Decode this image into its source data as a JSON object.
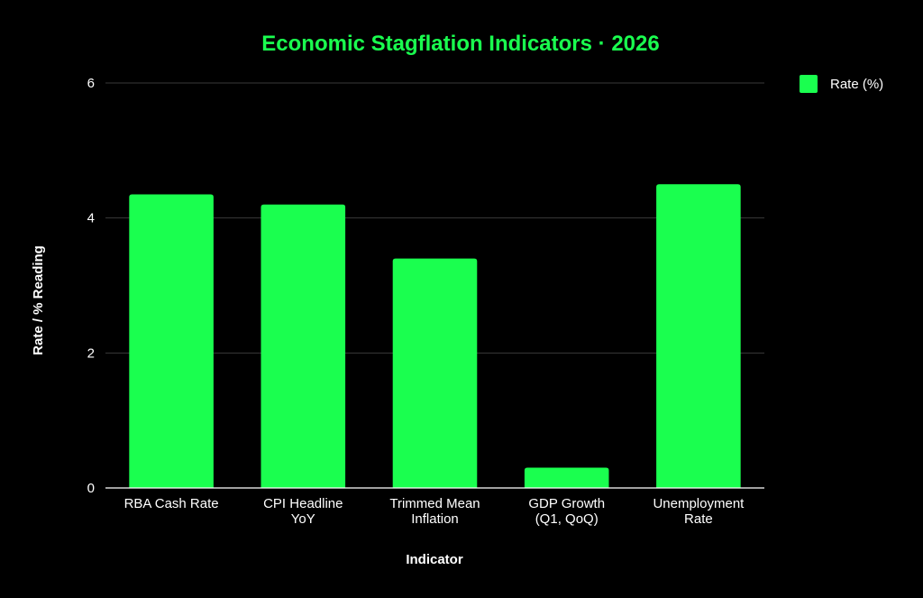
{
  "colors": {
    "background": "#000000",
    "accent": "#1aff4f",
    "title": "#1aff4f",
    "text": "#ffffff",
    "grid": "#3a3a3a",
    "axis": "#ffffff"
  },
  "chart_data": {
    "type": "bar",
    "title": "Economic Stagflation Indicators · 2026",
    "xlabel": "Indicator",
    "ylabel": "Rate / % Reading",
    "categories": [
      [
        "RBA Cash Rate"
      ],
      [
        "CPI Headline",
        "YoY"
      ],
      [
        "Trimmed Mean",
        "Inflation"
      ],
      [
        "GDP Growth",
        "(Q1, QoQ)"
      ],
      [
        "Unemployment",
        "Rate"
      ]
    ],
    "series": [
      {
        "name": "Rate (%)",
        "values": [
          4.35,
          4.2,
          3.4,
          0.3,
          4.5
        ]
      }
    ],
    "ylim": [
      0,
      6
    ],
    "yticks": [
      0,
      2,
      4,
      6
    ],
    "grid": true,
    "legend_position": "top-right"
  }
}
